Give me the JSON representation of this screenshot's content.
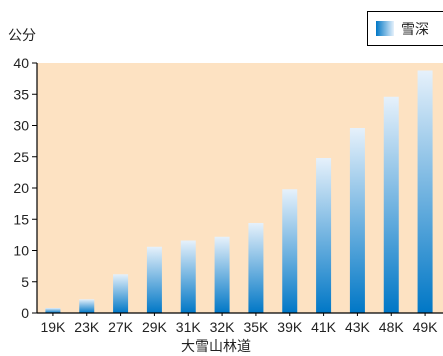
{
  "chart_data": {
    "type": "bar",
    "ylabel": "公分",
    "xlabel": "大雪山林道",
    "categories": [
      "19K",
      "23K",
      "27K",
      "29K",
      "31K",
      "32K",
      "35K",
      "39K",
      "41K",
      "43K",
      "48K",
      "49K"
    ],
    "series": [
      {
        "name": "雪深",
        "values": [
          0.8,
          2.2,
          6.2,
          10.6,
          11.6,
          12.2,
          14.4,
          19.8,
          24.8,
          29.6,
          34.6,
          38.8
        ]
      }
    ],
    "ylim": [
      0,
      40
    ],
    "yticks": [
      0,
      5,
      10,
      15,
      20,
      25,
      30,
      35,
      40
    ],
    "grid": false,
    "legend_position": "top-right",
    "colors": {
      "plot_background": "#fde2c2",
      "bar_bottom": "#0077c6",
      "bar_top": "#e6f1fb",
      "axis": "#000000"
    }
  }
}
